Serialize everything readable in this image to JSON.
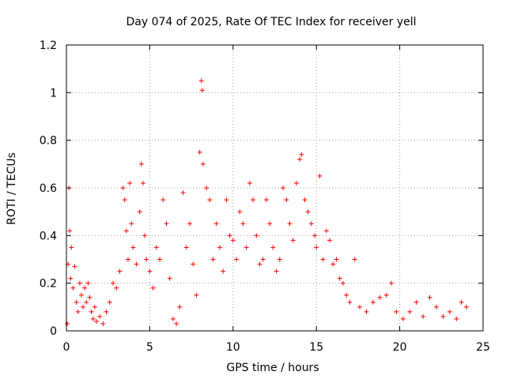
{
  "chart_data": {
    "type": "scatter",
    "title": "Day 074 of 2025, Rate Of TEC Index for receiver yell",
    "xlabel": "GPS time / hours",
    "ylabel": "ROTI / TECUs",
    "xlim": [
      0,
      25
    ],
    "ylim": [
      0,
      1.2
    ],
    "x_ticks": [
      0,
      5,
      10,
      15,
      20,
      25
    ],
    "x_tick_labels": [
      "0",
      "5",
      "10",
      "15",
      "20",
      "25"
    ],
    "y_ticks": [
      0,
      0.2,
      0.4,
      0.6,
      0.8,
      1.0,
      1.2
    ],
    "y_tick_labels": [
      "0",
      "0.2",
      "0.4",
      "0.6",
      "0.8",
      "1",
      "1.2"
    ],
    "grid": true,
    "marker": "+",
    "marker_color": "#ff0000",
    "series": [
      {
        "name": "ROTI",
        "points": [
          [
            0.05,
            0.03
          ],
          [
            0.1,
            0.28
          ],
          [
            0.15,
            0.6
          ],
          [
            0.2,
            0.42
          ],
          [
            0.25,
            0.22
          ],
          [
            0.3,
            0.35
          ],
          [
            0.4,
            0.18
          ],
          [
            0.5,
            0.27
          ],
          [
            0.6,
            0.12
          ],
          [
            0.7,
            0.08
          ],
          [
            0.8,
            0.2
          ],
          [
            0.9,
            0.15
          ],
          [
            1.0,
            0.1
          ],
          [
            1.1,
            0.18
          ],
          [
            1.2,
            0.12
          ],
          [
            1.3,
            0.2
          ],
          [
            1.4,
            0.14
          ],
          [
            1.5,
            0.08
          ],
          [
            1.6,
            0.05
          ],
          [
            1.7,
            0.1
          ],
          [
            1.8,
            0.04
          ],
          [
            2.0,
            0.06
          ],
          [
            2.2,
            0.03
          ],
          [
            2.4,
            0.08
          ],
          [
            2.6,
            0.12
          ],
          [
            2.8,
            0.2
          ],
          [
            3.0,
            0.18
          ],
          [
            3.2,
            0.25
          ],
          [
            3.4,
            0.6
          ],
          [
            3.5,
            0.55
          ],
          [
            3.6,
            0.42
          ],
          [
            3.7,
            0.3
          ],
          [
            3.8,
            0.62
          ],
          [
            3.9,
            0.45
          ],
          [
            4.0,
            0.35
          ],
          [
            4.2,
            0.28
          ],
          [
            4.4,
            0.5
          ],
          [
            4.5,
            0.7
          ],
          [
            4.6,
            0.62
          ],
          [
            4.7,
            0.4
          ],
          [
            4.8,
            0.3
          ],
          [
            5.0,
            0.25
          ],
          [
            5.2,
            0.18
          ],
          [
            5.4,
            0.35
          ],
          [
            5.6,
            0.3
          ],
          [
            5.8,
            0.55
          ],
          [
            6.0,
            0.45
          ],
          [
            6.2,
            0.22
          ],
          [
            6.4,
            0.05
          ],
          [
            6.6,
            0.03
          ],
          [
            6.8,
            0.1
          ],
          [
            7.0,
            0.58
          ],
          [
            7.2,
            0.35
          ],
          [
            7.4,
            0.45
          ],
          [
            7.6,
            0.28
          ],
          [
            7.8,
            0.15
          ],
          [
            8.0,
            0.75
          ],
          [
            8.1,
            1.05
          ],
          [
            8.15,
            1.01
          ],
          [
            8.2,
            0.7
          ],
          [
            8.4,
            0.6
          ],
          [
            8.6,
            0.55
          ],
          [
            8.8,
            0.3
          ],
          [
            9.0,
            0.45
          ],
          [
            9.2,
            0.35
          ],
          [
            9.4,
            0.25
          ],
          [
            9.6,
            0.55
          ],
          [
            9.8,
            0.4
          ],
          [
            10.0,
            0.38
          ],
          [
            10.2,
            0.3
          ],
          [
            10.4,
            0.5
          ],
          [
            10.6,
            0.45
          ],
          [
            10.8,
            0.35
          ],
          [
            11.0,
            0.62
          ],
          [
            11.2,
            0.55
          ],
          [
            11.4,
            0.4
          ],
          [
            11.6,
            0.28
          ],
          [
            11.8,
            0.3
          ],
          [
            12.0,
            0.55
          ],
          [
            12.2,
            0.45
          ],
          [
            12.4,
            0.35
          ],
          [
            12.6,
            0.25
          ],
          [
            12.8,
            0.3
          ],
          [
            13.0,
            0.6
          ],
          [
            13.2,
            0.55
          ],
          [
            13.4,
            0.45
          ],
          [
            13.6,
            0.38
          ],
          [
            13.8,
            0.62
          ],
          [
            14.0,
            0.72
          ],
          [
            14.1,
            0.74
          ],
          [
            14.3,
            0.55
          ],
          [
            14.5,
            0.5
          ],
          [
            14.7,
            0.45
          ],
          [
            14.9,
            0.4
          ],
          [
            15.0,
            0.35
          ],
          [
            15.2,
            0.65
          ],
          [
            15.4,
            0.3
          ],
          [
            15.6,
            0.42
          ],
          [
            15.8,
            0.38
          ],
          [
            16.0,
            0.28
          ],
          [
            16.2,
            0.3
          ],
          [
            16.4,
            0.22
          ],
          [
            16.6,
            0.2
          ],
          [
            16.8,
            0.15
          ],
          [
            17.0,
            0.12
          ],
          [
            17.3,
            0.3
          ],
          [
            17.6,
            0.1
          ],
          [
            18.0,
            0.08
          ],
          [
            18.4,
            0.12
          ],
          [
            18.8,
            0.14
          ],
          [
            19.2,
            0.15
          ],
          [
            19.5,
            0.2
          ],
          [
            19.8,
            0.08
          ],
          [
            20.2,
            0.05
          ],
          [
            20.6,
            0.08
          ],
          [
            21.0,
            0.12
          ],
          [
            21.4,
            0.06
          ],
          [
            21.8,
            0.14
          ],
          [
            22.2,
            0.1
          ],
          [
            22.6,
            0.06
          ],
          [
            23.0,
            0.08
          ],
          [
            23.4,
            0.05
          ],
          [
            23.7,
            0.12
          ],
          [
            24.0,
            0.1
          ]
        ]
      }
    ]
  }
}
